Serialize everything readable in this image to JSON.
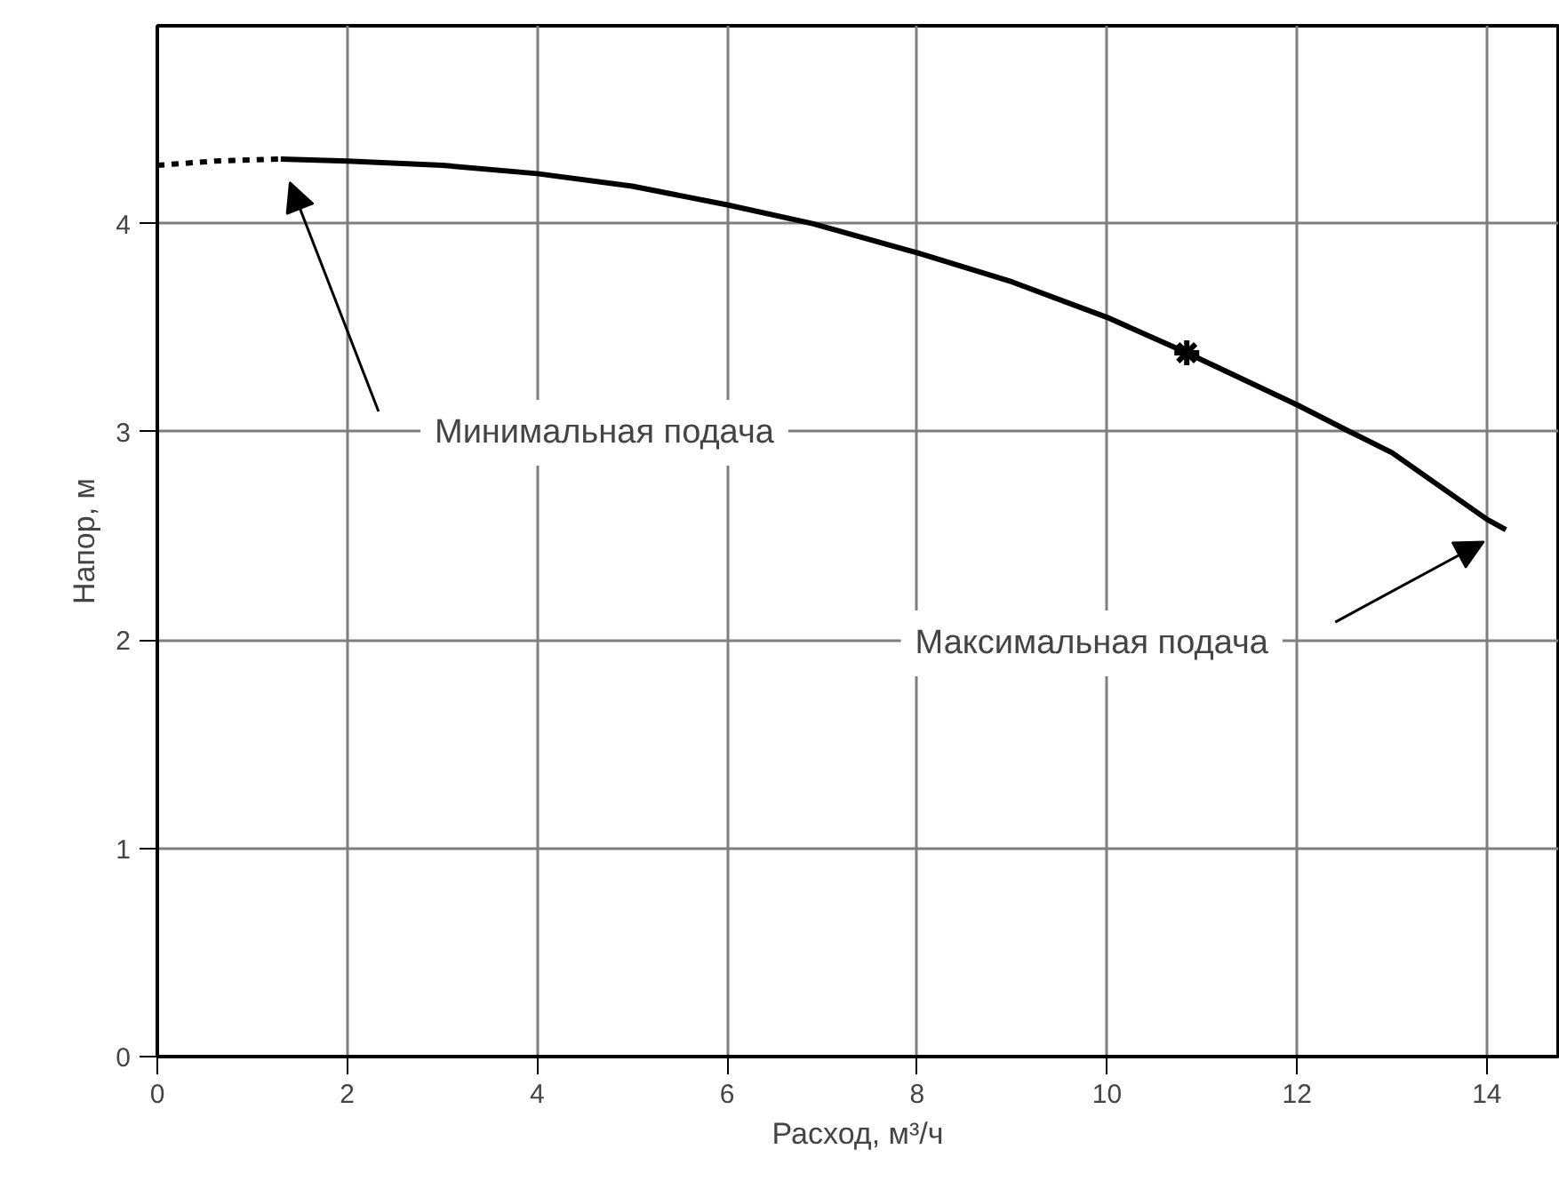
{
  "chart_data": {
    "type": "line",
    "xlabel": "Расход, м³/ч",
    "ylabel": "Напор, м",
    "xlim": [
      0,
      14.75
    ],
    "ylim": [
      0,
      4.95
    ],
    "xticks": [
      0,
      2,
      4,
      6,
      8,
      10,
      12,
      14
    ],
    "yticks": [
      0,
      1,
      2,
      3,
      4
    ],
    "grid": true,
    "series": [
      {
        "color": "#000000",
        "line_style": "dashed",
        "x": [
          0,
          0.6,
          1.3
        ],
        "values": [
          4.28,
          4.3,
          4.31
        ]
      },
      {
        "color": "#000000",
        "line_style": "solid",
        "x": [
          1.3,
          2,
          3,
          4,
          5,
          6,
          6.9,
          8,
          9,
          10,
          10.84,
          12,
          12.56,
          13,
          14,
          14.2
        ],
        "values": [
          4.31,
          4.3,
          4.28,
          4.24,
          4.18,
          4.09,
          4.0,
          3.86,
          3.72,
          3.55,
          3.38,
          3.13,
          3.0,
          2.9,
          2.58,
          2.53
        ]
      },
      {
        "type": "scatter",
        "color": "#000000",
        "marker": "cross",
        "x": [
          10.84
        ],
        "values": [
          3.38
        ]
      }
    ],
    "annotations": [
      "Минимальная подача",
      "Максимальная подача"
    ]
  }
}
